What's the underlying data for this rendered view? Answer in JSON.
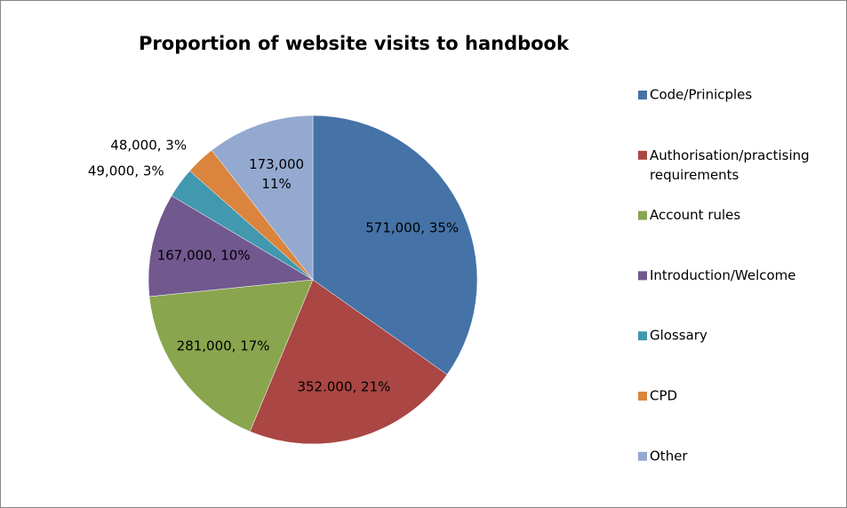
{
  "chart_data": {
    "type": "pie",
    "title": "Proportion of website visits to handbook",
    "categories": [
      "Code/Prinicples",
      "Authorisation/practising requirements",
      "Account rules",
      "Introduction/Welcome",
      "Glossary",
      "CPD",
      "Other"
    ],
    "values": [
      571000,
      352000,
      281000,
      167000,
      49000,
      48000,
      173000
    ],
    "value_labels": [
      "571,000, 35%",
      "352.000, 21%",
      "281,000, 17%",
      "167,000, 10%",
      "49,000, 3%",
      "48,000, 3%",
      "173,000\n11%"
    ],
    "colors": [
      "#4572a7",
      "#aa4643",
      "#89a54e",
      "#71588f",
      "#4198af",
      "#db843d",
      "#93a9cf"
    ],
    "legend": "right"
  }
}
